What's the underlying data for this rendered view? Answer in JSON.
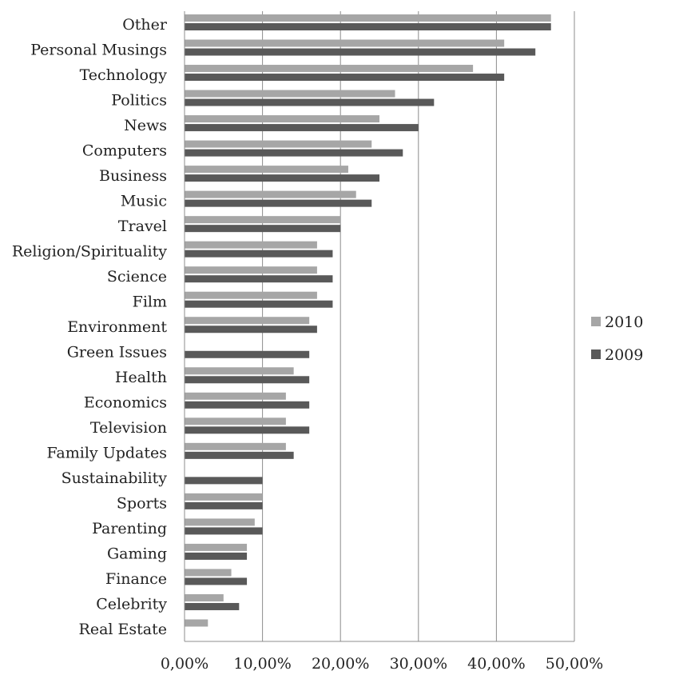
{
  "chart_data": {
    "type": "bar",
    "orientation": "horizontal",
    "title": "",
    "xlabel": "",
    "ylabel": "",
    "categories": [
      "Other",
      "Personal Musings",
      "Technology",
      "Politics",
      "News",
      "Computers",
      "Business",
      "Music",
      "Travel",
      "Religion/Spirituality",
      "Science",
      "Film",
      "Environment",
      "Green Issues",
      "Health",
      "Economics",
      "Television",
      "Family Updates",
      "Sustainability",
      "Sports",
      "Parenting",
      "Gaming",
      "Finance",
      "Celebrity",
      "Real Estate"
    ],
    "series": [
      {
        "name": "2010",
        "color": "#a6a6a6",
        "values": [
          47,
          41,
          37,
          27,
          25,
          24,
          21,
          22,
          20,
          17,
          17,
          17,
          16,
          null,
          14,
          13,
          13,
          13,
          null,
          10,
          9,
          8,
          6,
          5,
          3
        ]
      },
      {
        "name": "2009",
        "color": "#595959",
        "values": [
          47,
          45,
          41,
          32,
          30,
          28,
          25,
          24,
          20,
          19,
          19,
          19,
          17,
          16,
          16,
          16,
          16,
          14,
          10,
          10,
          10,
          8,
          8,
          7,
          null
        ]
      }
    ],
    "xlim": [
      0,
      50
    ],
    "xticks": [
      0,
      10,
      20,
      30,
      40,
      50
    ],
    "xtick_labels": [
      "0,00%",
      "10,00%",
      "20,00%",
      "30,00%",
      "40,00%",
      "50,00%"
    ],
    "grid": "vertical",
    "legend": {
      "position": "right",
      "entries": [
        "2010",
        "2009"
      ]
    }
  }
}
